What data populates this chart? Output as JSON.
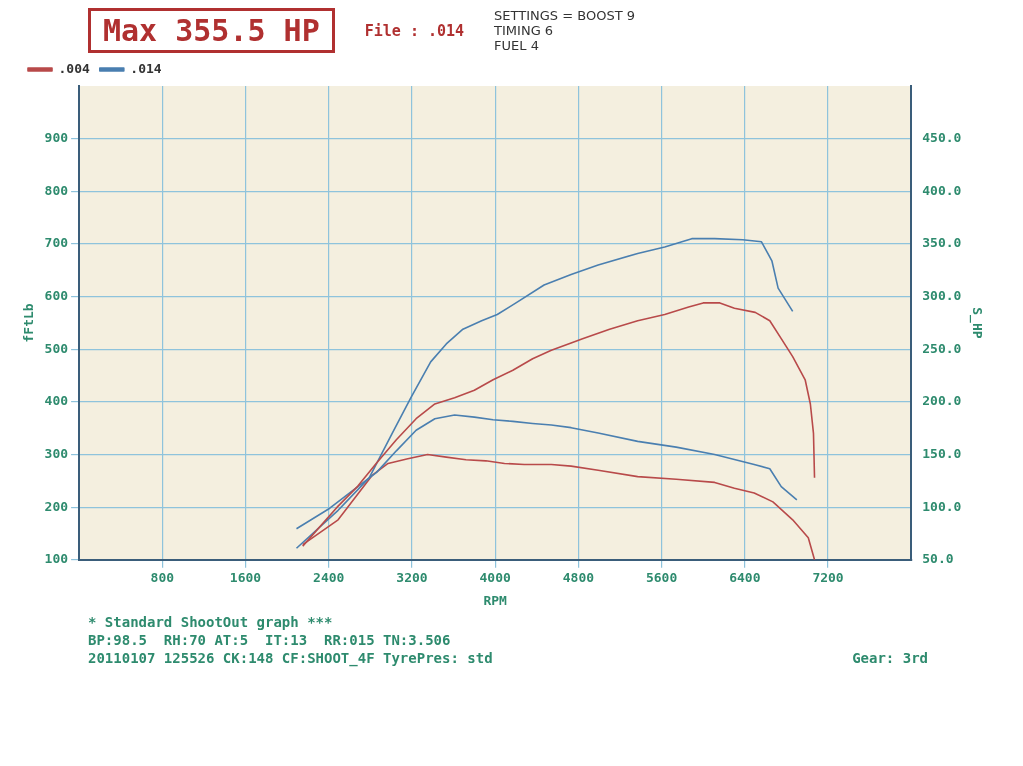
{
  "chart_data": {
    "type": "line",
    "title": "Max 355.5 HP",
    "xlabel": "RPM",
    "ylabel": "fFtLb",
    "y2label": "S_HP",
    "xlim": [
      0,
      8000
    ],
    "xticks": [
      800,
      1600,
      2400,
      3200,
      4000,
      4800,
      5600,
      6400,
      7200
    ],
    "ylim": [
      100,
      1000
    ],
    "yticks": [
      100,
      200,
      300,
      400,
      500,
      600,
      700,
      800,
      900
    ],
    "y2lim": [
      50,
      500
    ],
    "y2ticks": [
      {
        "value": 50,
        "label": "50.0"
      },
      {
        "value": 100,
        "label": "100.0"
      },
      {
        "value": 150,
        "label": "150.0"
      },
      {
        "value": 200,
        "label": "200.0"
      },
      {
        "value": 250,
        "label": "250.0"
      },
      {
        "value": 300,
        "label": "300.0"
      },
      {
        "value": 350,
        "label": "350.0"
      },
      {
        "value": 400,
        "label": "400.0"
      },
      {
        "value": 450,
        "label": "450.0"
      }
    ],
    "grid": true,
    "legend": "top left",
    "marker": "none",
    "line_style": "solid",
    "series": [
      {
        "name": ".004",
        "color": "#b84a4a",
        "axis": "y2",
        "x": [
          2150,
          2490,
          2680,
          2860,
          3050,
          3240,
          3420,
          3610,
          3800,
          3980,
          4170,
          4360,
          4540,
          4730,
          4840,
          5100,
          5370,
          5630,
          5860,
          6000,
          6160,
          6300,
          6500,
          6640,
          6750,
          6860,
          6980,
          7030,
          7060,
          7070
        ],
        "values": [
          63,
          101,
          120,
          142,
          164,
          184,
          198,
          204,
          211,
          221,
          230,
          241,
          249,
          256,
          260,
          269,
          277,
          283,
          290,
          294,
          294,
          289,
          285,
          277,
          260,
          243,
          221,
          198,
          170,
          128
        ]
      },
      {
        "name": ".014",
        "color": "#4a7fb0",
        "axis": "y2",
        "x": [
          2090,
          2490,
          2790,
          3010,
          3190,
          3380,
          3530,
          3690,
          3870,
          4020,
          4200,
          4470,
          4730,
          4990,
          5370,
          5630,
          5890,
          6110,
          6380,
          6560,
          6660,
          6720,
          6860
        ],
        "values": [
          61,
          97,
          128,
          170,
          204,
          238,
          255,
          269,
          277,
          283,
          294,
          311,
          321,
          330,
          341,
          347,
          355,
          355,
          354,
          352,
          334,
          308,
          286
        ]
      },
      {
        "color": "#4a7fb0",
        "x": [
          2090,
          2410,
          2680,
          2860,
          3050,
          3240,
          3420,
          3610,
          3800,
          3980,
          4170,
          4360,
          4540,
          4730,
          4990,
          5370,
          5740,
          6110,
          6490,
          6640,
          6750,
          6900
        ],
        "values": [
          159,
          198,
          239,
          266,
          307,
          346,
          368,
          375,
          371,
          366,
          363,
          359,
          356,
          351,
          341,
          325,
          314,
          300,
          281,
          273,
          239,
          214
        ]
      },
      {
        "color": "#b84a4a",
        "x": [
          2150,
          2490,
          2820,
          2970,
          3160,
          3350,
          3530,
          3720,
          3910,
          4090,
          4280,
          4540,
          4730,
          4990,
          5370,
          5740,
          6110,
          6300,
          6490,
          6670,
          6860,
          7010,
          7070
        ],
        "values": [
          129,
          176,
          261,
          283,
          292,
          300,
          295,
          290,
          288,
          283,
          281,
          281,
          278,
          270,
          258,
          253,
          247,
          236,
          227,
          210,
          176,
          142,
          100
        ]
      }
    ],
    "annotations": [
      "File : .014",
      "SETTINGS = BOOST 9\nTIMING 6\nFUEL 4",
      "* Standard ShootOut graph ***",
      "BP:98.5  RH:70 AT:5  IT:13  RR:015 TN:3.506",
      "20110107 125526 CK:148 CF:SHOOT_4F TyrePres: std",
      "Gear: 3rd"
    ]
  }
}
